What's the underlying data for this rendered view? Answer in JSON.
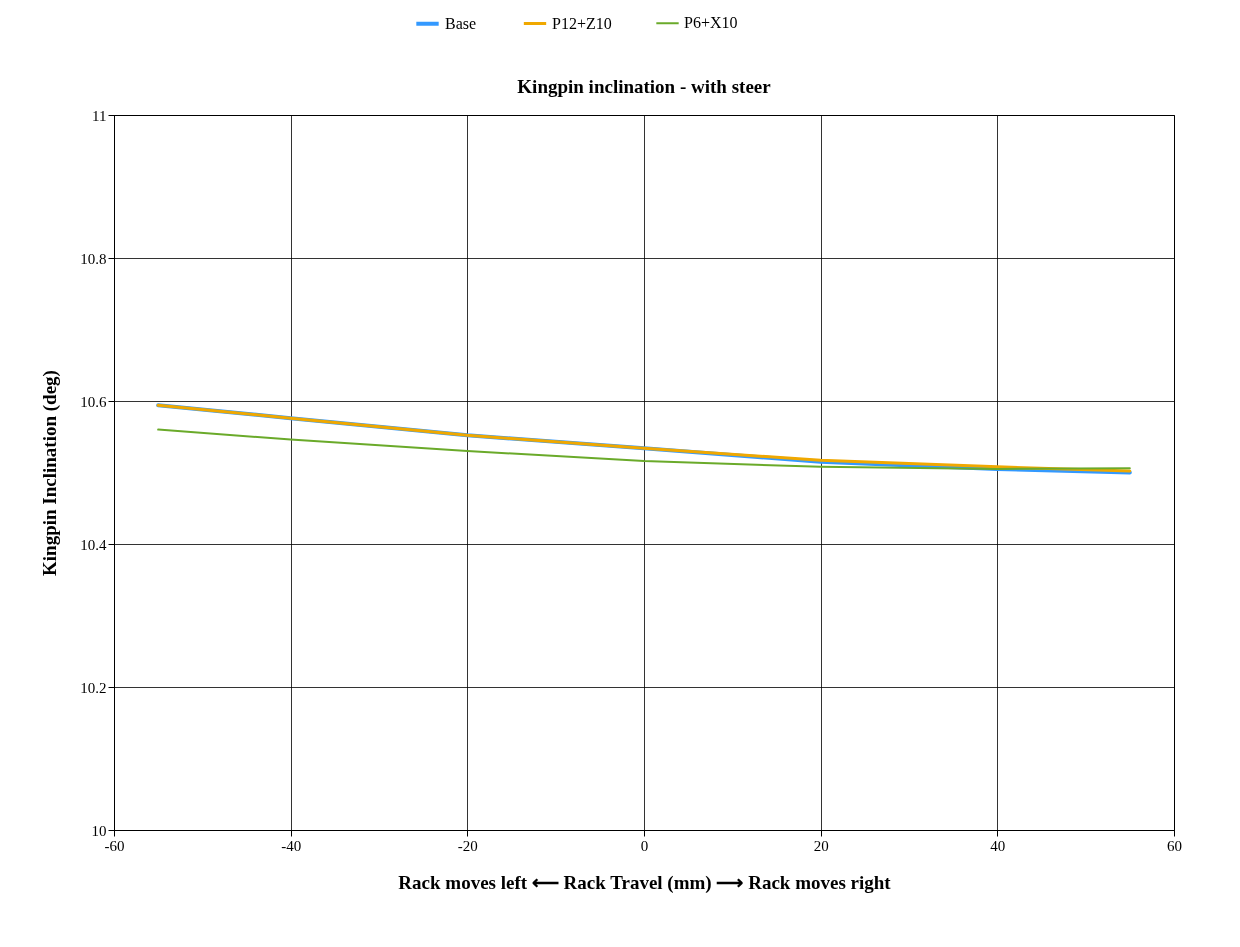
{
  "chart_data": {
    "type": "line",
    "title": "Kingpin inclination - with steer",
    "xlabel": "Rack moves left ⟵ Rack Travel (mm) ⟶ Rack moves right",
    "ylabel": "Kingpin Inclination (deg)",
    "x": [
      -55,
      -40,
      -20,
      0,
      20,
      40,
      55
    ],
    "series": [
      {
        "name": "Base",
        "color": "#3399ff",
        "values": [
          10.594,
          10.576,
          10.552,
          10.534,
          10.515,
          10.505,
          10.5
        ]
      },
      {
        "name": "P12+Z10",
        "color": "#f0a800",
        "values": [
          10.594,
          10.576,
          10.552,
          10.534,
          10.517,
          10.508,
          10.502
        ]
      },
      {
        "name": "P6+X10",
        "color": "#6aaa2a",
        "values": [
          10.56,
          10.546,
          10.53,
          10.516,
          10.508,
          10.505,
          10.506
        ]
      }
    ],
    "xlim": [
      -60,
      60
    ],
    "xticks": [
      -60,
      -40,
      -20,
      0,
      20,
      40,
      60
    ],
    "ylim": [
      10,
      11
    ],
    "yticks": [
      10,
      10.2,
      10.4,
      10.6,
      10.8,
      11
    ],
    "grid": true,
    "legend": "top",
    "line_style": "solid"
  }
}
